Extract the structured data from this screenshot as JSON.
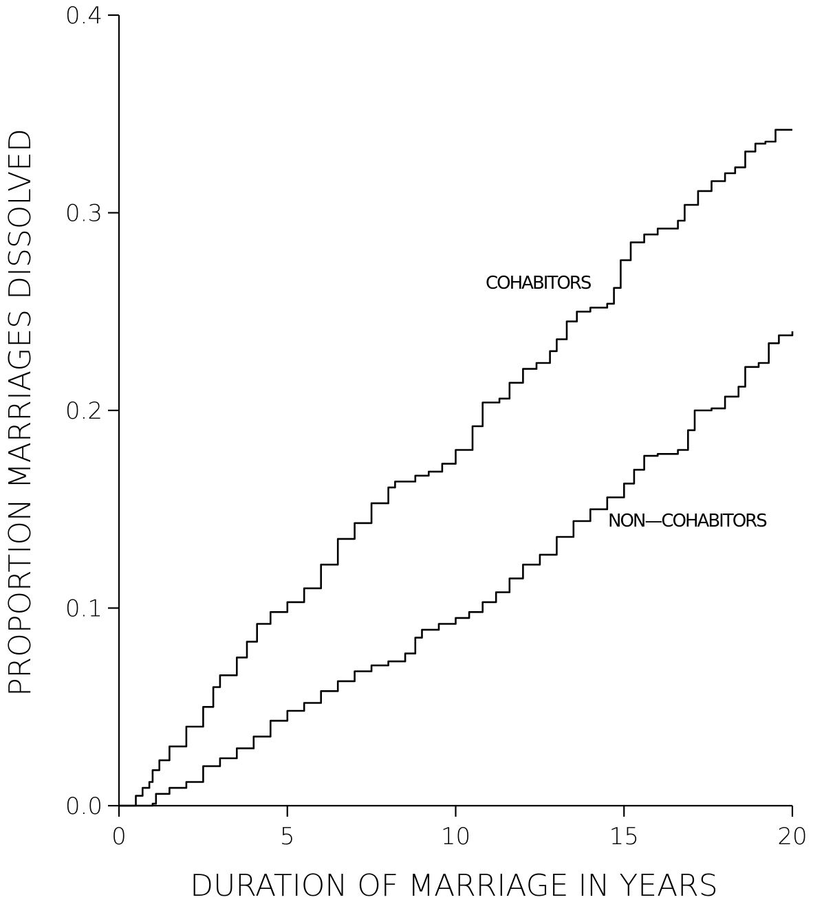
{
  "chart_data": {
    "type": "line",
    "title": "",
    "xlabel": "DURATION OF MARRIAGE IN YEARS",
    "ylabel": "PROPORTION MARRIAGES DISSOLVED",
    "xlim": [
      0,
      20
    ],
    "ylim": [
      0.0,
      0.4
    ],
    "x_ticks": [
      0,
      5,
      10,
      15,
      20
    ],
    "x_tick_labels": [
      "0",
      "5",
      "10",
      "15",
      "20"
    ],
    "y_ticks": [
      0.0,
      0.1,
      0.2,
      0.3,
      0.4
    ],
    "y_tick_labels": [
      "0.0",
      "0.1",
      "0.2",
      "0.3",
      "0.4"
    ],
    "grid": false,
    "series": [
      {
        "name": "COHABITORS",
        "color": "#000000",
        "points": [
          [
            0.0,
            0.0
          ],
          [
            0.5,
            0.005
          ],
          [
            0.7,
            0.009
          ],
          [
            0.9,
            0.012
          ],
          [
            1.0,
            0.018
          ],
          [
            1.2,
            0.023
          ],
          [
            1.5,
            0.03
          ],
          [
            2.0,
            0.04
          ],
          [
            2.5,
            0.05
          ],
          [
            2.8,
            0.06
          ],
          [
            3.0,
            0.066
          ],
          [
            3.5,
            0.075
          ],
          [
            3.8,
            0.083
          ],
          [
            4.1,
            0.092
          ],
          [
            4.5,
            0.098
          ],
          [
            5.0,
            0.103
          ],
          [
            5.5,
            0.11
          ],
          [
            6.0,
            0.122
          ],
          [
            6.5,
            0.135
          ],
          [
            7.0,
            0.143
          ],
          [
            7.5,
            0.153
          ],
          [
            8.0,
            0.161
          ],
          [
            8.2,
            0.164
          ],
          [
            8.8,
            0.167
          ],
          [
            9.2,
            0.169
          ],
          [
            9.6,
            0.173
          ],
          [
            10.0,
            0.18
          ],
          [
            10.5,
            0.192
          ],
          [
            10.8,
            0.204
          ],
          [
            11.3,
            0.206
          ],
          [
            11.6,
            0.214
          ],
          [
            12.0,
            0.221
          ],
          [
            12.4,
            0.224
          ],
          [
            12.8,
            0.23
          ],
          [
            13.0,
            0.236
          ],
          [
            13.3,
            0.245
          ],
          [
            13.6,
            0.25
          ],
          [
            14.0,
            0.252
          ],
          [
            14.5,
            0.254
          ],
          [
            14.7,
            0.262
          ],
          [
            14.9,
            0.276
          ],
          [
            15.2,
            0.285
          ],
          [
            15.6,
            0.289
          ],
          [
            16.0,
            0.292
          ],
          [
            16.6,
            0.296
          ],
          [
            16.8,
            0.304
          ],
          [
            17.2,
            0.311
          ],
          [
            17.6,
            0.316
          ],
          [
            18.0,
            0.32
          ],
          [
            18.3,
            0.323
          ],
          [
            18.6,
            0.331
          ],
          [
            18.9,
            0.335
          ],
          [
            19.2,
            0.336
          ],
          [
            19.5,
            0.342
          ],
          [
            20.0,
            0.342
          ]
        ]
      },
      {
        "name": "NON-COHABITORS",
        "color": "#000000",
        "points": [
          [
            0.0,
            0.0
          ],
          [
            0.5,
            0.0
          ],
          [
            1.0,
            0.001
          ],
          [
            1.1,
            0.006
          ],
          [
            1.5,
            0.009
          ],
          [
            2.0,
            0.012
          ],
          [
            2.5,
            0.02
          ],
          [
            3.0,
            0.024
          ],
          [
            3.5,
            0.029
          ],
          [
            4.0,
            0.035
          ],
          [
            4.5,
            0.043
          ],
          [
            5.0,
            0.048
          ],
          [
            5.5,
            0.052
          ],
          [
            6.0,
            0.058
          ],
          [
            6.5,
            0.063
          ],
          [
            7.0,
            0.068
          ],
          [
            7.5,
            0.071
          ],
          [
            8.0,
            0.073
          ],
          [
            8.5,
            0.077
          ],
          [
            8.8,
            0.085
          ],
          [
            9.0,
            0.089
          ],
          [
            9.5,
            0.092
          ],
          [
            10.0,
            0.095
          ],
          [
            10.4,
            0.098
          ],
          [
            10.8,
            0.103
          ],
          [
            11.2,
            0.108
          ],
          [
            11.6,
            0.115
          ],
          [
            12.0,
            0.122
          ],
          [
            12.5,
            0.127
          ],
          [
            13.0,
            0.136
          ],
          [
            13.5,
            0.144
          ],
          [
            14.0,
            0.15
          ],
          [
            14.5,
            0.156
          ],
          [
            15.0,
            0.163
          ],
          [
            15.3,
            0.17
          ],
          [
            15.6,
            0.177
          ],
          [
            16.0,
            0.178
          ],
          [
            16.6,
            0.18
          ],
          [
            16.9,
            0.19
          ],
          [
            17.1,
            0.2
          ],
          [
            17.6,
            0.201
          ],
          [
            18.0,
            0.207
          ],
          [
            18.4,
            0.212
          ],
          [
            18.6,
            0.222
          ],
          [
            19.0,
            0.224
          ],
          [
            19.3,
            0.234
          ],
          [
            19.6,
            0.238
          ],
          [
            20.0,
            0.24
          ]
        ]
      }
    ],
    "annotations": [
      {
        "text": "COHABITORS",
        "series": "COHABITORS"
      },
      {
        "text": "NON—COHABITORS",
        "series": "NON-COHABITORS"
      }
    ]
  }
}
